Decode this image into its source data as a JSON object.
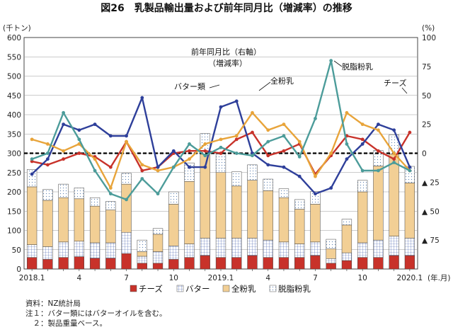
{
  "chart_data": {
    "type": "bar",
    "title": "図26　乳製品輸出量および前年同月比（増減率）の推移",
    "left_unit": "(千トン)",
    "right_unit": "(%)",
    "x_unit": "(年.月)",
    "ylim": [
      0,
      600
    ],
    "y_ticks": [
      0,
      50,
      100,
      150,
      200,
      250,
      300,
      350,
      400,
      450,
      500,
      550,
      600
    ],
    "y2lim": [
      -100,
      100
    ],
    "y2_ticks": [
      {
        "value": 100,
        "label": "100"
      },
      {
        "value": 75,
        "label": "75"
      },
      {
        "value": 50,
        "label": "50"
      },
      {
        "value": 25,
        "label": "25"
      },
      {
        "value": 0,
        "label": "0"
      },
      {
        "value": -25,
        "label": "▲ 25"
      },
      {
        "value": -50,
        "label": "▲ 50"
      },
      {
        "value": -75,
        "label": "▲ 75"
      }
    ],
    "categories": [
      "2018.1",
      "2",
      "3",
      "4",
      "5",
      "6",
      "7",
      "8",
      "9",
      "10",
      "11",
      "12",
      "2019.1",
      "2",
      "3",
      "4",
      "5",
      "6",
      "7",
      "8",
      "9",
      "10",
      "11",
      "12",
      "2020.1"
    ],
    "x_tick_labels": [
      {
        "index": 0,
        "label": "2018.1"
      },
      {
        "index": 3,
        "label": "4"
      },
      {
        "index": 6,
        "label": "7"
      },
      {
        "index": 9,
        "label": "10"
      },
      {
        "index": 12,
        "label": "2019.1"
      },
      {
        "index": 15,
        "label": "4"
      },
      {
        "index": 18,
        "label": "7"
      },
      {
        "index": 21,
        "label": "10"
      },
      {
        "index": 24,
        "label": "2020.1"
      }
    ],
    "bar_series": [
      {
        "name": "チーズ",
        "color": "#c8322a",
        "pattern": "solid",
        "values": [
          30,
          25,
          30,
          32,
          28,
          28,
          40,
          15,
          15,
          25,
          30,
          35,
          30,
          30,
          35,
          30,
          30,
          30,
          35,
          15,
          22,
          30,
          30,
          35,
          35
        ]
      },
      {
        "name": "バター",
        "color": "#ffffff",
        "pattern": "grid",
        "values": [
          33,
          33,
          40,
          40,
          40,
          40,
          55,
          18,
          30,
          35,
          35,
          45,
          50,
          50,
          45,
          45,
          40,
          35,
          35,
          12,
          20,
          38,
          45,
          50,
          45
        ]
      },
      {
        "name": "全粉乳",
        "color": "#f2cf95",
        "pattern": "solid",
        "values": [
          150,
          120,
          115,
          110,
          95,
          85,
          125,
          12,
          45,
          108,
          162,
          218,
          170,
          135,
          150,
          128,
          115,
          90,
          98,
          25,
          72,
          132,
          192,
          213,
          143
        ]
      },
      {
        "name": "脱脂粉乳",
        "color": "#ffffff",
        "pattern": "dots",
        "values": [
          45,
          28,
          35,
          28,
          22,
          22,
          28,
          30,
          15,
          32,
          48,
          53,
          50,
          37,
          40,
          30,
          23,
          25,
          33,
          25,
          15,
          30,
          40,
          50,
          43
        ]
      }
    ],
    "line_series": [
      {
        "name": "チーズ",
        "color": "#c8322a",
        "values": [
          -7,
          -10,
          -5,
          0,
          -3,
          -12,
          10,
          -15,
          -12,
          0,
          2,
          2,
          0,
          12,
          18,
          -2,
          2,
          8,
          -18,
          -2,
          15,
          12,
          2,
          -5,
          18
        ]
      },
      {
        "name": "バター",
        "color": "#2e3f9a",
        "values": [
          -18,
          -5,
          25,
          20,
          25,
          15,
          15,
          48,
          -12,
          2,
          -12,
          -12,
          40,
          45,
          0,
          -10,
          -12,
          -20,
          -35,
          -30,
          -5,
          8,
          25,
          20,
          -12
        ]
      },
      {
        "name": "全粉乳",
        "color": "#e8a43a",
        "values": [
          12,
          8,
          2,
          8,
          -5,
          -30,
          10,
          -10,
          -15,
          -12,
          -5,
          8,
          12,
          15,
          35,
          20,
          25,
          10,
          -20,
          0,
          35,
          25,
          20,
          0,
          -15
        ]
      },
      {
        "name": "脱脂粉乳",
        "color": "#4c9c9a",
        "values": [
          -5,
          0,
          35,
          12,
          -15,
          -35,
          -40,
          -22,
          -35,
          -12,
          8,
          -2,
          5,
          0,
          -2,
          10,
          15,
          -3,
          30,
          80,
          8,
          -15,
          -15,
          -8,
          -15
        ]
      }
    ],
    "annotations": [
      {
        "text": "前年同月比（右軸）",
        "line": 1
      },
      {
        "text": "（増減率）",
        "line": 2
      },
      {
        "text": "バター類"
      },
      {
        "text": "全粉乳"
      },
      {
        "text": "脱脂粉乳"
      },
      {
        "text": "チーズ"
      }
    ],
    "legend": [
      {
        "label": "チーズ",
        "pattern": "solid",
        "color": "#c8322a"
      },
      {
        "label": "バター",
        "pattern": "grid",
        "color": "#ffffff"
      },
      {
        "label": "全粉乳",
        "pattern": "solid",
        "color": "#f2cf95"
      },
      {
        "label": "脱脂粉乳",
        "pattern": "dots",
        "color": "#ffffff"
      }
    ],
    "legend_position": "bottom"
  },
  "notes": [
    "資料：NZ統計局",
    "注１：バター類にはバターオイルを含む。",
    "　２：製品重量ベース。"
  ]
}
